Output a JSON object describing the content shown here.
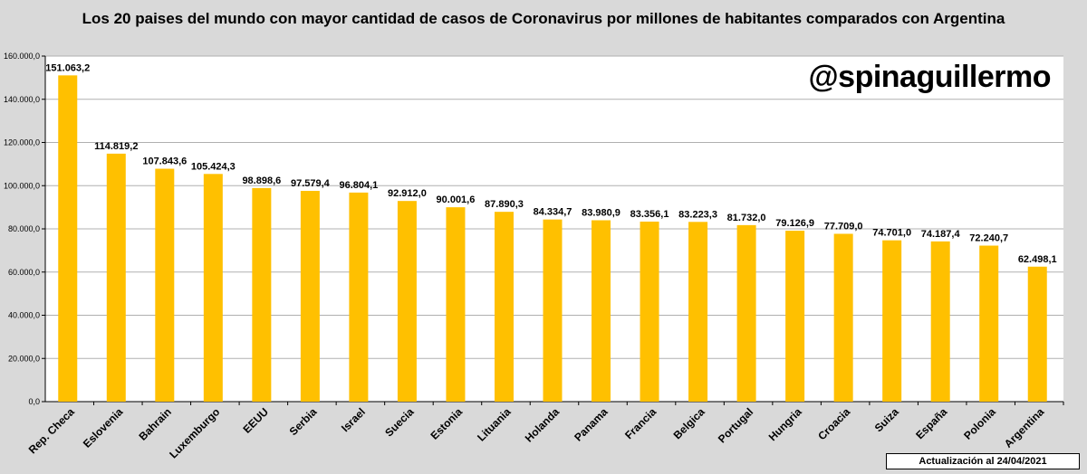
{
  "chart_data": {
    "type": "bar",
    "title": "Los 20 paises del mundo con mayor cantidad de casos de Coronavirus por millones de habitantes comparados con Argentina",
    "xlabel": "",
    "ylabel": "",
    "ylim": [
      0,
      160000
    ],
    "yticks": [
      0,
      20000,
      40000,
      60000,
      80000,
      100000,
      120000,
      140000,
      160000
    ],
    "ytick_labels": [
      "0,0",
      "20.000,0",
      "40.000,0",
      "60.000,0",
      "80.000,0",
      "100.000,0",
      "120.000,0",
      "140.000,0",
      "160.000,0"
    ],
    "grid": true,
    "legend": "none",
    "bar_color": "#ffc000",
    "categories": [
      "Rep. Checa",
      "Eslovenia",
      "Bahrain",
      "Luxemburgo",
      "EEUU",
      "Serbia",
      "Israel",
      "Suecia",
      "Estonia",
      "Lituania",
      "Holanda",
      "Panama",
      "Francia",
      "Belgica",
      "Portugal",
      "Hungria",
      "Croacia",
      "Suiza",
      "España",
      "Polonia",
      "Argentina"
    ],
    "values": [
      151063.2,
      114819.2,
      107843.6,
      105424.3,
      98898.6,
      97579.4,
      96804.1,
      92912.0,
      90001.6,
      87890.3,
      84334.7,
      83980.9,
      83356.1,
      83223.3,
      81732.0,
      79126.9,
      77709.0,
      74701.0,
      74187.4,
      72240.7,
      62498.1
    ],
    "value_labels": [
      "151.063,2",
      "114.819,2",
      "107.843,6",
      "105.424,3",
      "98.898,6",
      "97.579,4",
      "96.804,1",
      "92.912,0",
      "90.001,6",
      "87.890,3",
      "84.334,7",
      "83.980,9",
      "83.356,1",
      "83.223,3",
      "81.732,0",
      "79.126,9",
      "77.709,0",
      "74.701,0",
      "74.187,4",
      "72.240,7",
      "62.498,1"
    ]
  },
  "watermark": "@spinaguillermo",
  "footnote": "Actualización  al 24/04/2021"
}
